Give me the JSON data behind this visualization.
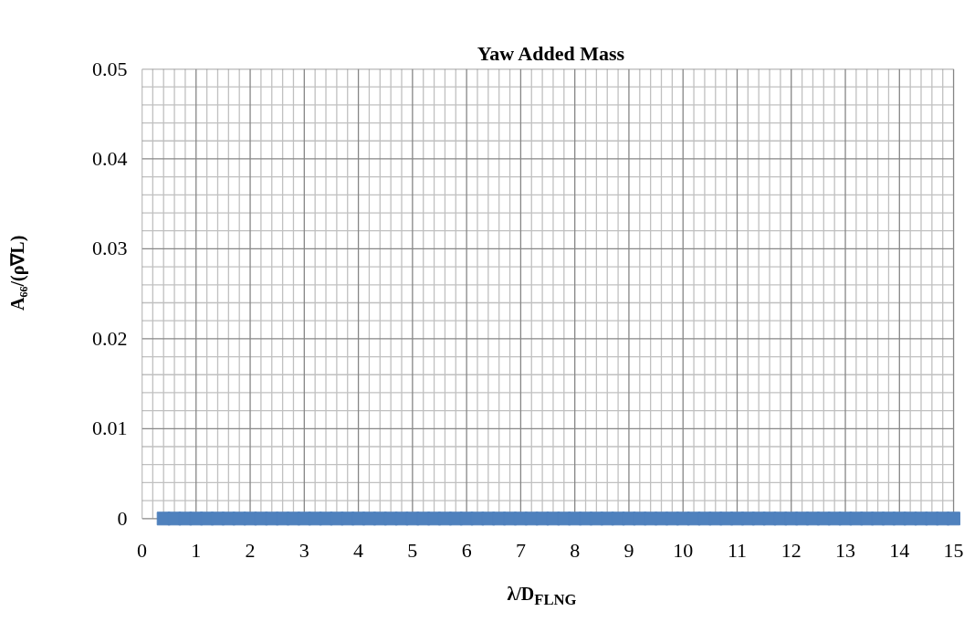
{
  "chart_data": {
    "type": "scatter",
    "title": "Yaw Added Mass",
    "xlabel": "λ/D$_{FLNG}$",
    "ylabel": "A₆₆/(ρ∇L)",
    "x": [
      0.4,
      0.6,
      0.8,
      1.0,
      1.2,
      1.4,
      1.6,
      1.8,
      2.0,
      2.2,
      2.4,
      2.6,
      2.8,
      3.0,
      3.2,
      3.4,
      3.6,
      3.8,
      4.0,
      4.2,
      4.4,
      4.6,
      4.8,
      5.0,
      5.2,
      5.4,
      5.6,
      5.8,
      6.0,
      6.2,
      6.4,
      6.6,
      6.8,
      7.0,
      7.2,
      7.4,
      7.6,
      7.8,
      8.0,
      8.2,
      8.4,
      8.6,
      8.8,
      9.0,
      9.2,
      9.4,
      9.6,
      9.8,
      10.0,
      10.2,
      10.4,
      10.6,
      10.8,
      11.0,
      11.2,
      11.4,
      11.6,
      11.8,
      12.0,
      12.2,
      12.4,
      12.6,
      12.8,
      13.0,
      13.2,
      13.4,
      13.6,
      13.8,
      14.0,
      14.2,
      14.4,
      14.6,
      14.8,
      15.0
    ],
    "series": [
      {
        "color": "#4f81bd",
        "values": [
          0,
          0,
          0,
          0,
          0,
          0,
          0,
          0,
          0,
          0,
          0,
          0,
          0,
          0,
          0,
          0,
          0,
          0,
          0,
          0,
          0,
          0,
          0,
          0,
          0,
          0,
          0,
          0,
          0,
          0,
          0,
          0,
          0,
          0,
          0,
          0,
          0,
          0,
          0,
          0,
          0,
          0,
          0,
          0,
          0,
          0,
          0,
          0,
          0,
          0,
          0,
          0,
          0,
          0,
          0,
          0,
          0,
          0,
          0,
          0,
          0,
          0,
          0,
          0,
          0,
          0,
          0,
          0,
          0,
          0,
          0,
          0,
          0,
          0
        ]
      }
    ],
    "xlim": [
      0,
      15
    ],
    "xticks": [
      0,
      1,
      2,
      3,
      4,
      5,
      6,
      7,
      8,
      9,
      10,
      11,
      12,
      13,
      14,
      15
    ],
    "ylim": [
      0,
      0.05
    ],
    "yticks": [
      0,
      0.01,
      0.02,
      0.03,
      0.04,
      0.05
    ],
    "grid": true,
    "marker": "square"
  }
}
